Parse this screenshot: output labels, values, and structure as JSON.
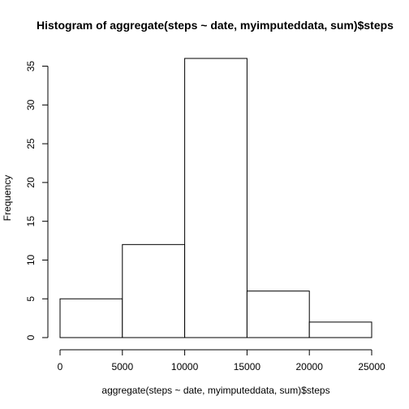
{
  "chart_data": {
    "type": "bar",
    "title": "Histogram of aggregate(steps ~ date, myimputeddata, sum)$steps",
    "xlabel": "aggregate(steps ~ date, myimputeddata, sum)$steps",
    "ylabel": "Frequency",
    "bins": [
      {
        "start": 0,
        "end": 5000,
        "count": 5
      },
      {
        "start": 5000,
        "end": 10000,
        "count": 12
      },
      {
        "start": 10000,
        "end": 15000,
        "count": 36
      },
      {
        "start": 15000,
        "end": 20000,
        "count": 6
      },
      {
        "start": 20000,
        "end": 25000,
        "count": 2
      }
    ],
    "xlim": [
      0,
      25000
    ],
    "ylim": [
      0,
      36
    ],
    "x_ticks": [
      0,
      5000,
      10000,
      15000,
      20000,
      25000
    ],
    "y_ticks": [
      0,
      5,
      10,
      15,
      20,
      25,
      30,
      35
    ],
    "grid": false,
    "bar_fill": "#ffffff",
    "bar_stroke": "#000000"
  }
}
